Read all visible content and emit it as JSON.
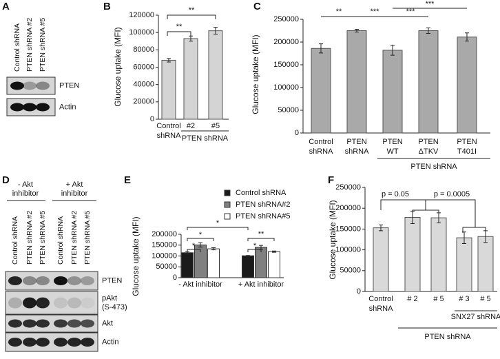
{
  "panel_labels": [
    "A",
    "B",
    "C",
    "D",
    "E",
    "F"
  ],
  "blots": [
    {
      "lanes": [
        "Control shRNA",
        "PTEN shRNA #2",
        "PTEN shRNA #5"
      ],
      "rows": [
        [
          "PTEN"
        ],
        [
          "Actin"
        ]
      ]
    },
    {
      "groups": [
        [
          "- Akt",
          "inhibitor"
        ],
        [
          "+ Akt",
          "inhibitor"
        ]
      ],
      "lanes": [
        "Control shRNA",
        "PTEN shRNA #2",
        "PTEN shRNA #5",
        "Control shRNA",
        "PTEN shRNA #2",
        "PTEN shRNA #5"
      ],
      "rows": [
        [
          "PTEN"
        ],
        [
          "pAkt",
          "(S-473)"
        ],
        [
          "Akt"
        ],
        [
          "Actin"
        ]
      ]
    }
  ],
  "chart_data": [
    {
      "type": "bar",
      "y_label": "Glucose uptake (MFI)",
      "categories": [
        [
          "Control",
          "shRNA"
        ],
        [
          "#2"
        ],
        [
          "#5"
        ]
      ],
      "values": [
        68000,
        93000,
        102000
      ],
      "errors": [
        2000,
        3000,
        4000
      ],
      "color": "#d4d4d4",
      "ylim": [
        0,
        120000
      ],
      "yticks": [
        0,
        20000,
        40000,
        60000,
        80000,
        100000,
        120000
      ],
      "group_labels": [
        "PTEN shRNA"
      ],
      "annotations": [
        "**",
        "**"
      ]
    },
    {
      "type": "bar",
      "y_label": "Glucose uptake (MFI)",
      "categories": [
        [
          "Control",
          "shRNA"
        ],
        [
          "PTEN",
          "shRNA"
        ],
        [
          "PTEN",
          "WT"
        ],
        [
          "PTEN",
          "ΔTKV"
        ],
        [
          "PTEN",
          "T401I"
        ]
      ],
      "values": [
        186000,
        225000,
        182000,
        225000,
        211000
      ],
      "errors": [
        10000,
        3000,
        11000,
        6000,
        9000
      ],
      "color": "#a9a9a9",
      "ylim": [
        0,
        250000
      ],
      "yticks": [
        0,
        50000,
        100000,
        150000,
        200000,
        250000
      ],
      "group_labels": [
        "PTEN shRNA"
      ],
      "annotations": [
        "**",
        "***",
        "***",
        "***"
      ]
    },
    {
      "type": "grouped_bar",
      "y_label": "Glucose uptake (MFI)",
      "categories": [
        [
          "- Akt inhibitor"
        ],
        [
          "+ Akt inhibitor"
        ]
      ],
      "series": [
        {
          "name": "Control shRNA",
          "color": "#1a1a1a",
          "values": [
            115000,
            101000
          ],
          "errors": [
            5000,
            1500
          ]
        },
        {
          "name": "PTEN shRNA#2",
          "color": "#808080",
          "values": [
            151000,
            140000
          ],
          "errors": [
            10000,
            9000
          ]
        },
        {
          "name": "PTEN shRNA#5",
          "color": "#ffffff",
          "values": [
            133000,
            120000
          ],
          "errors": [
            5000,
            3000
          ]
        }
      ],
      "ylim": [
        0,
        200000
      ],
      "yticks": [
        0,
        50000,
        100000,
        150000,
        200000
      ],
      "annotations": [
        "*",
        "*",
        "*",
        "**",
        "*"
      ]
    },
    {
      "type": "bar",
      "y_label": "Glucose uptake (MFI)",
      "categories": [
        [
          "Control",
          "shRNA"
        ],
        [
          "# 2"
        ],
        [
          "# 5"
        ],
        [
          "# 3"
        ],
        [
          "# 5"
        ]
      ],
      "values": [
        153000,
        178000,
        177000,
        129000,
        132000
      ],
      "errors": [
        7000,
        15000,
        12000,
        14000,
        14000
      ],
      "color": "#d9d9d9",
      "ylim": [
        0,
        250000
      ],
      "yticks": [
        0,
        50000,
        100000,
        150000,
        200000,
        250000
      ],
      "group_labels": [
        "SNX27 shRNA",
        "PTEN shRNA"
      ],
      "annotations": [
        "p = 0.05",
        "p = 0.0005"
      ]
    }
  ]
}
